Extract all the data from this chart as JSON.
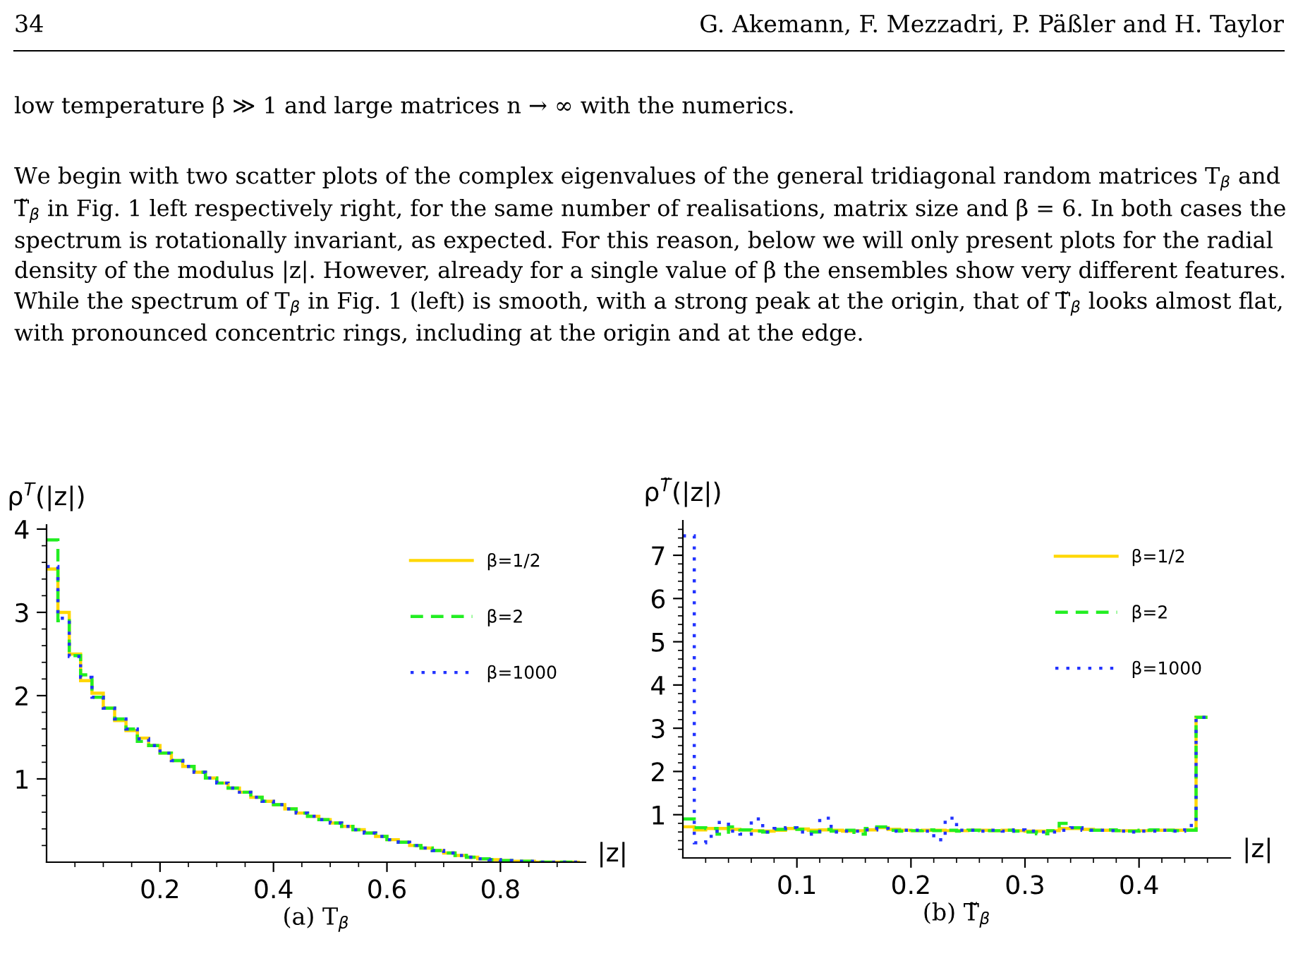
{
  "chart_data": [
    {
      "type": "histogram",
      "title": "(a) T$_{β}$",
      "xlabel": "|z|",
      "ylabel": "ρ$^{T}$(|z|)",
      "annotations": [
        "34",
        "G. Akemann, F. Mezzadri, P. Päßler and H. Taylor",
        "low temperature β ≫ 1 and large matrices n → ∞ with the numerics.",
        "We begin with two scatter plots of the complex eigenvalues of the general tridiagonal random matrices T$_{β}$ and T̃$_{β}$ in Fig. 1 left respectively right, for the same number of realisations, matrix size and β = 6. In both cases the spectrum is rotationally invariant, as expected. For this reason, below we will only present plots for the radial density of the modulus |z|. However, already for a single value of β the ensembles show very different features. While the spectrum of T$_{β}$ in Fig. 1 (left) is smooth, with a strong peak at the origin, that of T̃$_{β}$ looks almost flat, with pronounced concentric rings, including at the origin and at the edge."
      ],
      "bins": [
        0,
        0.02,
        0.04,
        0.06,
        0.08,
        0.1,
        0.12,
        0.14,
        0.16,
        0.18,
        0.2,
        0.22,
        0.24,
        0.26,
        0.28,
        0.3,
        0.32,
        0.34,
        0.36,
        0.38,
        0.4,
        0.42,
        0.44,
        0.46,
        0.48,
        0.5,
        0.52,
        0.54,
        0.56,
        0.58,
        0.6,
        0.62,
        0.64,
        0.66,
        0.68,
        0.7,
        0.72,
        0.74,
        0.76,
        0.78,
        0.8,
        0.82,
        0.84,
        0.86,
        0.88,
        0.9,
        0.92,
        0.94
      ],
      "series": [
        {
          "name": "β=1/2",
          "color": "#ffd700",
          "line_style": "solid",
          "values": [
            3.52,
            3.0,
            2.5,
            2.18,
            2.03,
            1.85,
            1.7,
            1.58,
            1.49,
            1.4,
            1.31,
            1.22,
            1.15,
            1.08,
            1.01,
            0.95,
            0.89,
            0.84,
            0.78,
            0.73,
            0.69,
            0.64,
            0.59,
            0.55,
            0.51,
            0.47,
            0.43,
            0.39,
            0.35,
            0.31,
            0.27,
            0.24,
            0.2,
            0.17,
            0.14,
            0.11,
            0.08,
            0.06,
            0.04,
            0.03,
            0.02,
            0.01,
            0.01,
            0,
            0,
            0,
            0
          ]
        },
        {
          "name": "β=2",
          "color": "#22ee22",
          "line_style": "dashed",
          "values": [
            3.87,
            2.9,
            2.48,
            2.25,
            1.98,
            1.85,
            1.72,
            1.6,
            1.45,
            1.4,
            1.31,
            1.22,
            1.15,
            1.08,
            1.01,
            0.95,
            0.89,
            0.84,
            0.78,
            0.73,
            0.69,
            0.64,
            0.59,
            0.55,
            0.51,
            0.47,
            0.43,
            0.39,
            0.35,
            0.31,
            0.27,
            0.24,
            0.2,
            0.17,
            0.14,
            0.11,
            0.08,
            0.06,
            0.04,
            0.03,
            0.02,
            0.01,
            0.01,
            0,
            0,
            0,
            0
          ]
        },
        {
          "name": "β=1000",
          "color": "#2233ff",
          "line_style": "dotted",
          "values": [
            3.55,
            2.93,
            2.47,
            2.22,
            1.98,
            1.85,
            1.72,
            1.6,
            1.48,
            1.4,
            1.31,
            1.22,
            1.15,
            1.08,
            1.01,
            0.95,
            0.89,
            0.84,
            0.78,
            0.73,
            0.69,
            0.64,
            0.59,
            0.55,
            0.51,
            0.47,
            0.43,
            0.39,
            0.35,
            0.31,
            0.27,
            0.24,
            0.2,
            0.17,
            0.14,
            0.11,
            0.08,
            0.06,
            0.04,
            0.03,
            0.02,
            0.01,
            0.01,
            0,
            0,
            0,
            0
          ]
        }
      ],
      "xlim": [
        0,
        0.95
      ],
      "ylim": [
        0,
        4.05
      ],
      "xticks": [
        {
          "value": 0.05,
          "label": null
        },
        {
          "value": 0.1,
          "label": null
        },
        {
          "value": 0.15,
          "label": null
        },
        {
          "value": 0.2,
          "label": "0.2"
        },
        {
          "value": 0.25,
          "label": null
        },
        {
          "value": 0.3,
          "label": null
        },
        {
          "value": 0.35,
          "label": null
        },
        {
          "value": 0.4,
          "label": "0.4"
        },
        {
          "value": 0.45,
          "label": null
        },
        {
          "value": 0.5,
          "label": null
        },
        {
          "value": 0.55,
          "label": null
        },
        {
          "value": 0.6,
          "label": "0.6"
        },
        {
          "value": 0.65,
          "label": null
        },
        {
          "value": 0.7,
          "label": null
        },
        {
          "value": 0.75,
          "label": null
        },
        {
          "value": 0.8,
          "label": "0.8"
        },
        {
          "value": 0.85,
          "label": null
        },
        {
          "value": 0.9,
          "label": null
        }
      ],
      "yticks": [
        {
          "value": 0.2,
          "label": null
        },
        {
          "value": 0.4,
          "label": null
        },
        {
          "value": 0.6,
          "label": null
        },
        {
          "value": 0.8,
          "label": null
        },
        1,
        {
          "value": 1.2,
          "label": null
        },
        {
          "value": 1.4,
          "label": null
        },
        {
          "value": 1.6,
          "label": null
        },
        {
          "value": 1.8,
          "label": null
        },
        2,
        {
          "value": 2.2,
          "label": null
        },
        {
          "value": 2.4,
          "label": null
        },
        {
          "value": 2.6,
          "label": null
        },
        {
          "value": 2.8,
          "label": null
        },
        3,
        {
          "value": 3.2,
          "label": null
        },
        {
          "value": 3.4,
          "label": null
        },
        {
          "value": 3.6,
          "label": null
        },
        {
          "value": 3.8,
          "label": null
        },
        4
      ],
      "legend": "top right",
      "grid": false
    },
    {
      "type": "histogram",
      "title": "(b) T̃$_{β}$",
      "xlabel": "|z|",
      "ylabel": "ρ$^{T̃}$(|z|)",
      "bins": [
        0,
        0.01,
        0.02,
        0.03,
        0.04,
        0.05,
        0.06,
        0.07,
        0.08,
        0.09,
        0.1,
        0.11,
        0.12,
        0.13,
        0.14,
        0.15,
        0.16,
        0.17,
        0.18,
        0.19,
        0.2,
        0.21,
        0.22,
        0.23,
        0.24,
        0.25,
        0.26,
        0.27,
        0.28,
        0.29,
        0.3,
        0.31,
        0.32,
        0.33,
        0.34,
        0.35,
        0.36,
        0.37,
        0.38,
        0.39,
        0.4,
        0.41,
        0.42,
        0.43,
        0.44,
        0.45,
        0.46
      ],
      "series": [
        {
          "name": "β=1/2",
          "color": "#ffd700",
          "line_style": "solid",
          "values": [
            0.72,
            0.65,
            0.68,
            0.68,
            0.66,
            0.65,
            0.63,
            0.62,
            0.64,
            0.68,
            0.67,
            0.64,
            0.65,
            0.64,
            0.62,
            0.63,
            0.65,
            0.7,
            0.66,
            0.64,
            0.63,
            0.64,
            0.64,
            0.63,
            0.63,
            0.64,
            0.64,
            0.63,
            0.64,
            0.63,
            0.62,
            0.62,
            0.63,
            0.68,
            0.68,
            0.66,
            0.64,
            0.64,
            0.63,
            0.63,
            0.63,
            0.64,
            0.64,
            0.64,
            0.65,
            3.25
          ]
        },
        {
          "name": "β=2",
          "color": "#22ee22",
          "line_style": "dashed",
          "values": [
            0.9,
            0.7,
            0.68,
            0.55,
            0.72,
            0.65,
            0.62,
            0.6,
            0.66,
            0.7,
            0.66,
            0.6,
            0.66,
            0.62,
            0.64,
            0.55,
            0.68,
            0.72,
            0.64,
            0.62,
            0.63,
            0.65,
            0.63,
            0.64,
            0.62,
            0.64,
            0.63,
            0.63,
            0.64,
            0.62,
            0.6,
            0.56,
            0.63,
            0.8,
            0.7,
            0.64,
            0.64,
            0.65,
            0.63,
            0.62,
            0.64,
            0.65,
            0.64,
            0.63,
            0.64,
            3.25
          ]
        },
        {
          "name": "β=1000",
          "color": "#2233ff",
          "line_style": "dotted",
          "values": [
            7.45,
            0.35,
            0.5,
            0.82,
            0.62,
            0.55,
            0.9,
            0.6,
            0.68,
            0.7,
            0.6,
            0.55,
            0.92,
            0.6,
            0.62,
            0.62,
            0.65,
            0.68,
            0.62,
            0.64,
            0.64,
            0.62,
            0.42,
            0.92,
            0.64,
            0.64,
            0.62,
            0.64,
            0.62,
            0.65,
            0.62,
            0.6,
            0.6,
            0.64,
            0.7,
            0.64,
            0.64,
            0.63,
            0.62,
            0.6,
            0.62,
            0.62,
            0.64,
            0.62,
            0.75,
            3.25
          ]
        }
      ],
      "xlim": [
        0,
        0.48
      ],
      "ylim": [
        0,
        7.8
      ],
      "xticks": [
        {
          "value": 0.02,
          "label": null
        },
        {
          "value": 0.04,
          "label": null
        },
        {
          "value": 0.06,
          "label": null
        },
        {
          "value": 0.08,
          "label": null
        },
        {
          "value": 0.1,
          "label": "0.1"
        },
        {
          "value": 0.12,
          "label": null
        },
        {
          "value": 0.14,
          "label": null
        },
        {
          "value": 0.16,
          "label": null
        },
        {
          "value": 0.18,
          "label": null
        },
        {
          "value": 0.2,
          "label": "0.2"
        },
        {
          "value": 0.22,
          "label": null
        },
        {
          "value": 0.24,
          "label": null
        },
        {
          "value": 0.26,
          "label": null
        },
        {
          "value": 0.28,
          "label": null
        },
        {
          "value": 0.3,
          "label": "0.3"
        },
        {
          "value": 0.32,
          "label": null
        },
        {
          "value": 0.34,
          "label": null
        },
        {
          "value": 0.36,
          "label": null
        },
        {
          "value": 0.38,
          "label": null
        },
        {
          "value": 0.4,
          "label": "0.4"
        },
        {
          "value": 0.42,
          "label": null
        },
        {
          "value": 0.44,
          "label": null
        },
        {
          "value": 0.46,
          "label": null
        }
      ],
      "yticks": [
        {
          "value": 0.2,
          "label": null
        },
        {
          "value": 0.4,
          "label": null
        },
        {
          "value": 0.6,
          "label": null
        },
        {
          "value": 0.8,
          "label": null
        },
        1,
        {
          "value": 1.2,
          "label": null
        },
        {
          "value": 1.4,
          "label": null
        },
        {
          "value": 1.6,
          "label": null
        },
        {
          "value": 1.8,
          "label": null
        },
        2,
        {
          "value": 2.2,
          "label": null
        },
        {
          "value": 2.4,
          "label": null
        },
        {
          "value": 2.6,
          "label": null
        },
        {
          "value": 2.8,
          "label": null
        },
        3,
        {
          "value": 3.2,
          "label": null
        },
        {
          "value": 3.4,
          "label": null
        },
        {
          "value": 3.6,
          "label": null
        },
        {
          "value": 3.8,
          "label": null
        },
        4,
        {
          "value": 4.2,
          "label": null
        },
        {
          "value": 4.4,
          "label": null
        },
        {
          "value": 4.6,
          "label": null
        },
        {
          "value": 4.8,
          "label": null
        },
        5,
        {
          "value": 5.2,
          "label": null
        },
        {
          "value": 5.4,
          "label": null
        },
        {
          "value": 5.6,
          "label": null
        },
        {
          "value": 5.8,
          "label": null
        },
        6,
        {
          "value": 6.2,
          "label": null
        },
        {
          "value": 6.4,
          "label": null
        },
        {
          "value": 6.6,
          "label": null
        },
        {
          "value": 6.8,
          "label": null
        },
        7,
        {
          "value": 7.2,
          "label": null
        },
        {
          "value": 7.4,
          "label": null
        },
        {
          "value": 7.6,
          "label": null
        }
      ],
      "legend": "top right",
      "grid": false
    }
  ]
}
